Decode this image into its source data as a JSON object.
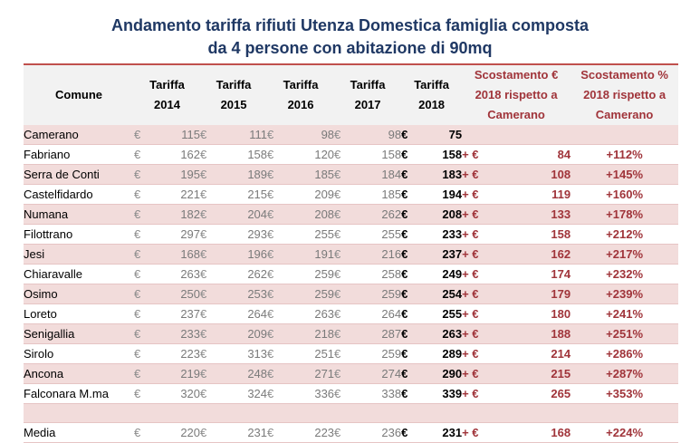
{
  "title": {
    "line1": "Andamento tariffa rifiuti Utenza Domestica famiglia composta",
    "line2": "da 4 persone con abitazione di 90mq"
  },
  "currency_symbol": "€",
  "header": {
    "comune": "Comune",
    "y2014_a": "Tariffa",
    "y2014_b": "2014",
    "y2015_a": "Tariffa",
    "y2015_b": "2015",
    "y2016_a": "Tariffa",
    "y2016_b": "2016",
    "y2017_a": "Tariffa",
    "y2017_b": "2017",
    "y2018_a": "Tariffa",
    "y2018_b": "2018",
    "diff_a": "Scostamento €",
    "diff_b": "2018 rispetto a",
    "diff_c": "Camerano",
    "pct_a": "Scostamento %",
    "pct_b": "2018 rispetto a",
    "pct_c": "Camerano"
  },
  "rows": [
    {
      "comune": "Camerano",
      "t2014": "115",
      "t2015": "111",
      "t2016": "98",
      "t2017": "98",
      "t2018": "75",
      "plus": "",
      "diff": "",
      "pct": ""
    },
    {
      "comune": "Fabriano",
      "t2014": "162",
      "t2015": "158",
      "t2016": "120",
      "t2017": "158",
      "t2018": "158",
      "plus": "+ €",
      "diff": "84",
      "pct": "+112%"
    },
    {
      "comune": "Serra de Conti",
      "t2014": "195",
      "t2015": "189",
      "t2016": "185",
      "t2017": "184",
      "t2018": "183",
      "plus": "+ €",
      "diff": "108",
      "pct": "+145%"
    },
    {
      "comune": "Castelfidardo",
      "t2014": "221",
      "t2015": "215",
      "t2016": "209",
      "t2017": "185",
      "t2018": "194",
      "plus": "+ €",
      "diff": "119",
      "pct": "+160%"
    },
    {
      "comune": "Numana",
      "t2014": "182",
      "t2015": "204",
      "t2016": "208",
      "t2017": "262",
      "t2018": "208",
      "plus": "+ €",
      "diff": "133",
      "pct": "+178%"
    },
    {
      "comune": "Filottrano",
      "t2014": "297",
      "t2015": "293",
      "t2016": "255",
      "t2017": "255",
      "t2018": "233",
      "plus": "+ €",
      "diff": "158",
      "pct": "+212%"
    },
    {
      "comune": "Jesi",
      "t2014": "168",
      "t2015": "196",
      "t2016": "191",
      "t2017": "216",
      "t2018": "237",
      "plus": "+ €",
      "diff": "162",
      "pct": "+217%"
    },
    {
      "comune": "Chiaravalle",
      "t2014": "263",
      "t2015": "262",
      "t2016": "259",
      "t2017": "258",
      "t2018": "249",
      "plus": "+ €",
      "diff": "174",
      "pct": "+232%"
    },
    {
      "comune": "Osimo",
      "t2014": "250",
      "t2015": "253",
      "t2016": "259",
      "t2017": "259",
      "t2018": "254",
      "plus": "+ €",
      "diff": "179",
      "pct": "+239%"
    },
    {
      "comune": "Loreto",
      "t2014": "237",
      "t2015": "264",
      "t2016": "263",
      "t2017": "264",
      "t2018": "255",
      "plus": "+ €",
      "diff": "180",
      "pct": "+241%"
    },
    {
      "comune": "Senigallia",
      "t2014": "233",
      "t2015": "209",
      "t2016": "218",
      "t2017": "287",
      "t2018": "263",
      "plus": "+ €",
      "diff": "188",
      "pct": "+251%"
    },
    {
      "comune": "Sirolo",
      "t2014": "223",
      "t2015": "313",
      "t2016": "251",
      "t2017": "259",
      "t2018": "289",
      "plus": "+ €",
      "diff": "214",
      "pct": "+286%"
    },
    {
      "comune": "Ancona",
      "t2014": "219",
      "t2015": "248",
      "t2016": "271",
      "t2017": "274",
      "t2018": "290",
      "plus": "+ €",
      "diff": "215",
      "pct": "+287%"
    },
    {
      "comune": "Falconara M.ma",
      "t2014": "320",
      "t2015": "324",
      "t2016": "336",
      "t2017": "338",
      "t2018": "339",
      "plus": "+ €",
      "diff": "265",
      "pct": "+353%"
    }
  ],
  "media": {
    "comune": "Media",
    "t2014": "220",
    "t2015": "231",
    "t2016": "223",
    "t2017": "236",
    "t2018": "231",
    "plus": "+ €",
    "diff": "168",
    "pct": "+224%"
  }
}
